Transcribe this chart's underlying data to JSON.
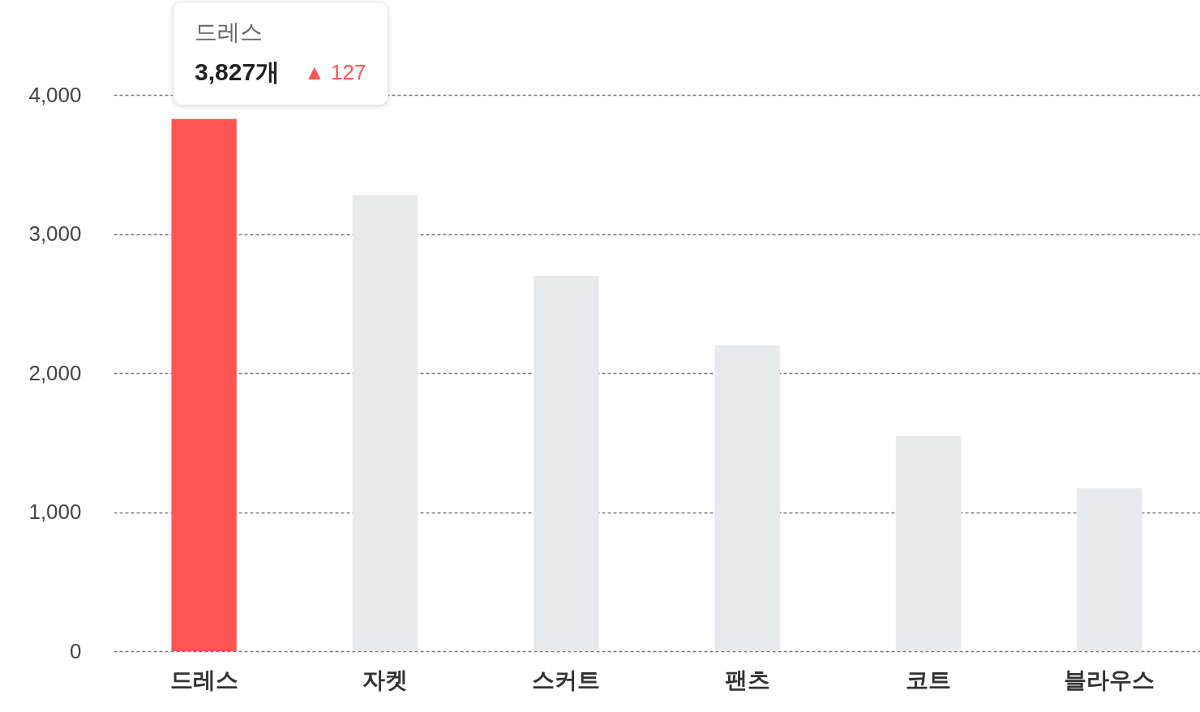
{
  "chart_data": {
    "type": "bar",
    "categories": [
      "드레스",
      "자켓",
      "스커트",
      "팬츠",
      "코트",
      "블라우스"
    ],
    "values": [
      3827,
      3280,
      2700,
      2200,
      1545,
      1170
    ],
    "colors": [
      "#ff5555",
      "#e8e9ec",
      "#e8e9ec",
      "#e8e9ec",
      "#e8e9ec",
      "#e8e9ec"
    ],
    "ylim": [
      0,
      4000
    ],
    "yticks": [
      0,
      {
        "value": 1000,
        "label": "1,000"
      },
      {
        "value": 2000,
        "label": "2,000"
      },
      {
        "value": 3000,
        "label": "3,000"
      },
      {
        "value": 4000,
        "label": "4,000"
      }
    ],
    "grid": "y",
    "annotations": [
      "드레스",
      "3,827개",
      "▲ 127"
    ]
  }
}
